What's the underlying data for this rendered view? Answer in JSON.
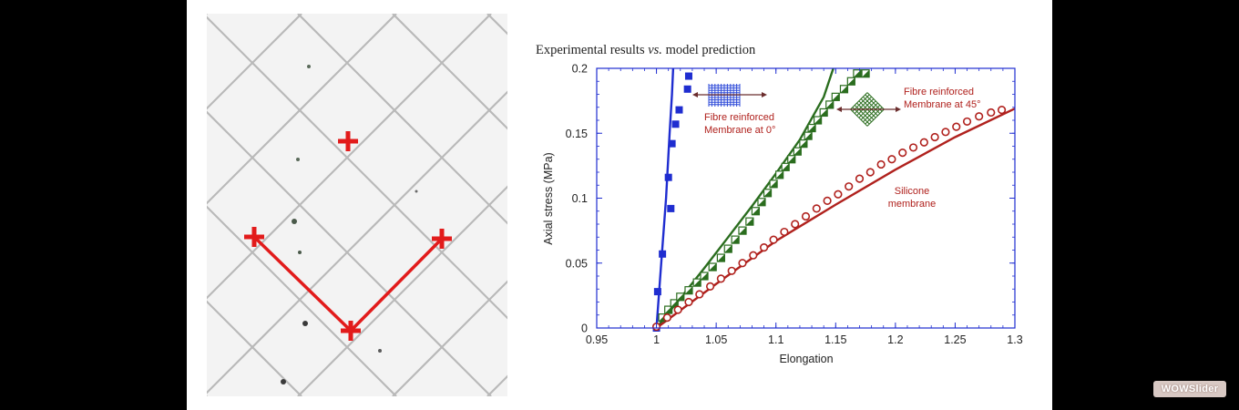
{
  "slider_badge": "WOWSlider",
  "photo": {
    "markers": [
      {
        "label": "top-marker"
      },
      {
        "label": "left-marker"
      },
      {
        "label": "right-marker"
      },
      {
        "label": "bottom-marker"
      }
    ],
    "colors": {
      "marker": "#e21b1b",
      "grid": "#b9b9b9",
      "background": "#f3f3f3"
    }
  },
  "chart_data": {
    "type": "scatter",
    "title": "Experimental results vs. model prediction",
    "title_parts": {
      "before": "Experimental results ",
      "italic": "vs.",
      "after": " model prediction"
    },
    "xlabel": "Elongation",
    "ylabel": "Axial stress (MPa)",
    "xlim": [
      0.95,
      1.3
    ],
    "ylim": [
      0,
      0.2
    ],
    "xticks": [
      "0.95",
      "1",
      "1.05",
      "1.1",
      "1.15",
      "1.2",
      "1.25",
      "1.3"
    ],
    "yticks": [
      "0",
      "0.05",
      "0.1",
      "0.15",
      "0.2"
    ],
    "grid": false,
    "annotations": [
      {
        "name": "annotation-0deg",
        "lines": [
          "Fibre reinforced",
          "Membrane at 0°"
        ]
      },
      {
        "name": "annotation-45deg",
        "lines": [
          "Fibre reinforced",
          "Membrane at 45°"
        ]
      },
      {
        "name": "annotation-silicone",
        "lines": [
          "Silicone",
          "membrane"
        ]
      }
    ],
    "series": [
      {
        "key": "fibre0",
        "color": "#1f2dd0",
        "marker": "filled-square",
        "points": [
          [
            1.0,
            0.0
          ],
          [
            1.001,
            0.028
          ],
          [
            1.005,
            0.057
          ],
          [
            1.012,
            0.092
          ],
          [
            1.01,
            0.116
          ],
          [
            1.013,
            0.142
          ],
          [
            1.016,
            0.157
          ],
          [
            1.019,
            0.168
          ],
          [
            1.026,
            0.184
          ],
          [
            1.027,
            0.194
          ]
        ],
        "model": [
          [
            1.0,
            0.0
          ],
          [
            1.004,
            0.05
          ],
          [
            1.008,
            0.1
          ],
          [
            1.011,
            0.15
          ],
          [
            1.013,
            0.18
          ],
          [
            1.014,
            0.2
          ]
        ]
      },
      {
        "key": "fibre45",
        "color": "#2a6d1e",
        "marker": "half-square",
        "points": [
          [
            1.005,
            0.008
          ],
          [
            1.01,
            0.014
          ],
          [
            1.015,
            0.019
          ],
          [
            1.02,
            0.024
          ],
          [
            1.027,
            0.029
          ],
          [
            1.034,
            0.035
          ],
          [
            1.04,
            0.04
          ],
          [
            1.047,
            0.047
          ],
          [
            1.054,
            0.054
          ],
          [
            1.06,
            0.061
          ],
          [
            1.066,
            0.068
          ],
          [
            1.072,
            0.075
          ],
          [
            1.078,
            0.082
          ],
          [
            1.083,
            0.09
          ],
          [
            1.088,
            0.097
          ],
          [
            1.093,
            0.104
          ],
          [
            1.098,
            0.111
          ],
          [
            1.103,
            0.118
          ],
          [
            1.108,
            0.124
          ],
          [
            1.113,
            0.13
          ],
          [
            1.118,
            0.136
          ],
          [
            1.123,
            0.142
          ],
          [
            1.127,
            0.148
          ],
          [
            1.13,
            0.154
          ],
          [
            1.135,
            0.16
          ],
          [
            1.14,
            0.166
          ],
          [
            1.145,
            0.172
          ],
          [
            1.15,
            0.178
          ],
          [
            1.157,
            0.184
          ],
          [
            1.163,
            0.19
          ],
          [
            1.168,
            0.196
          ],
          [
            1.175,
            0.196
          ]
        ],
        "model": [
          [
            1.0,
            0.0
          ],
          [
            1.02,
            0.023
          ],
          [
            1.04,
            0.046
          ],
          [
            1.06,
            0.07
          ],
          [
            1.08,
            0.094
          ],
          [
            1.1,
            0.119
          ],
          [
            1.12,
            0.145
          ],
          [
            1.14,
            0.178
          ],
          [
            1.148,
            0.2
          ]
        ]
      },
      {
        "key": "silicone",
        "color": "#b0211d",
        "marker": "open-circle",
        "points": [
          [
            1.0,
            0.001
          ],
          [
            1.009,
            0.008
          ],
          [
            1.018,
            0.014
          ],
          [
            1.027,
            0.02
          ],
          [
            1.036,
            0.026
          ],
          [
            1.045,
            0.032
          ],
          [
            1.054,
            0.038
          ],
          [
            1.063,
            0.044
          ],
          [
            1.072,
            0.05
          ],
          [
            1.081,
            0.056
          ],
          [
            1.09,
            0.062
          ],
          [
            1.098,
            0.068
          ],
          [
            1.107,
            0.074
          ],
          [
            1.116,
            0.08
          ],
          [
            1.125,
            0.086
          ],
          [
            1.134,
            0.092
          ],
          [
            1.143,
            0.098
          ],
          [
            1.152,
            0.103
          ],
          [
            1.161,
            0.109
          ],
          [
            1.17,
            0.115
          ],
          [
            1.179,
            0.12
          ],
          [
            1.188,
            0.126
          ],
          [
            1.197,
            0.13
          ],
          [
            1.206,
            0.135
          ],
          [
            1.215,
            0.139
          ],
          [
            1.224,
            0.143
          ],
          [
            1.233,
            0.147
          ],
          [
            1.242,
            0.151
          ],
          [
            1.251,
            0.155
          ],
          [
            1.26,
            0.159
          ],
          [
            1.27,
            0.163
          ],
          [
            1.28,
            0.166
          ],
          [
            1.289,
            0.168
          ]
        ],
        "model": [
          [
            1.0,
            0.0
          ],
          [
            1.05,
            0.034
          ],
          [
            1.1,
            0.067
          ],
          [
            1.15,
            0.095
          ],
          [
            1.2,
            0.122
          ],
          [
            1.25,
            0.147
          ],
          [
            1.3,
            0.169
          ]
        ]
      }
    ]
  }
}
